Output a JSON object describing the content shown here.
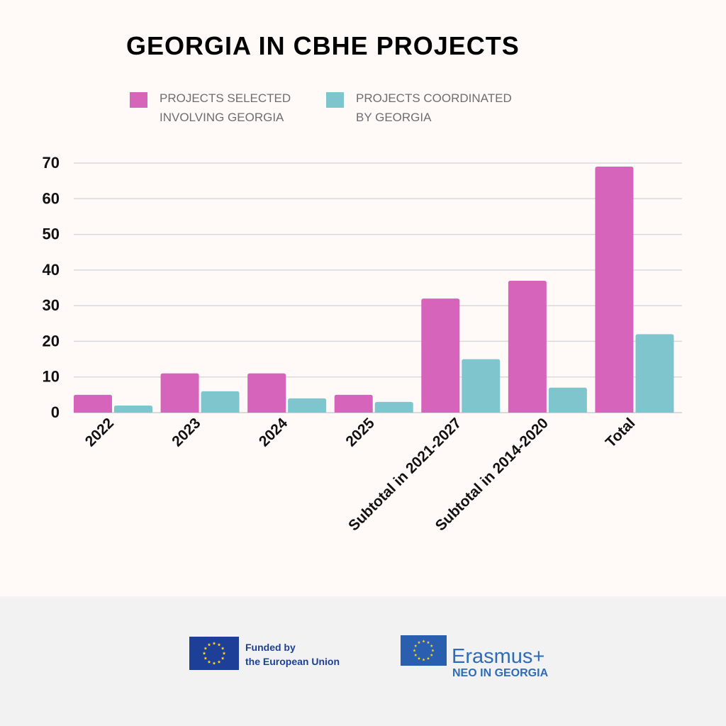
{
  "header": {
    "title": "GEORGIA IN CBHE PROJECTS"
  },
  "chart_data": {
    "type": "bar",
    "title": "GEORGIA IN CBHE PROJECTS",
    "xlabel": "",
    "ylabel": "",
    "categories": [
      "2022",
      "2023",
      "2024",
      "2025",
      "Subtotal in 2021-2027",
      "Subtotal in 2014-2020",
      "Total"
    ],
    "series": [
      {
        "name": "PROJECTS SELECTED INVOLVING GEORGIA",
        "color": "#d664bb",
        "values": [
          5,
          11,
          11,
          5,
          32,
          37,
          69
        ]
      },
      {
        "name": "PROJECTS COORDINATED BY GEORGIA",
        "color": "#7ec5ce",
        "values": [
          2,
          6,
          4,
          3,
          15,
          7,
          22
        ]
      }
    ],
    "ylim": [
      0,
      70
    ],
    "yticks": [
      0,
      10,
      20,
      30,
      40,
      50,
      60,
      70
    ],
    "grid": true,
    "legend_position": "top"
  },
  "legend": {
    "items": [
      {
        "label_line1": "PROJECTS SELECTED",
        "label_line2": "INVOLVING GEORGIA",
        "color": "#d664bb"
      },
      {
        "label_line1": "PROJECTS COORDINATED",
        "label_line2": "BY GEORGIA",
        "color": "#7ec5ce"
      }
    ]
  },
  "footer": {
    "eu_line1": "Funded by",
    "eu_line2": "the European Union",
    "erasmus_label": "Erasmus+",
    "neo_label": "NEO IN GEORGIA"
  }
}
